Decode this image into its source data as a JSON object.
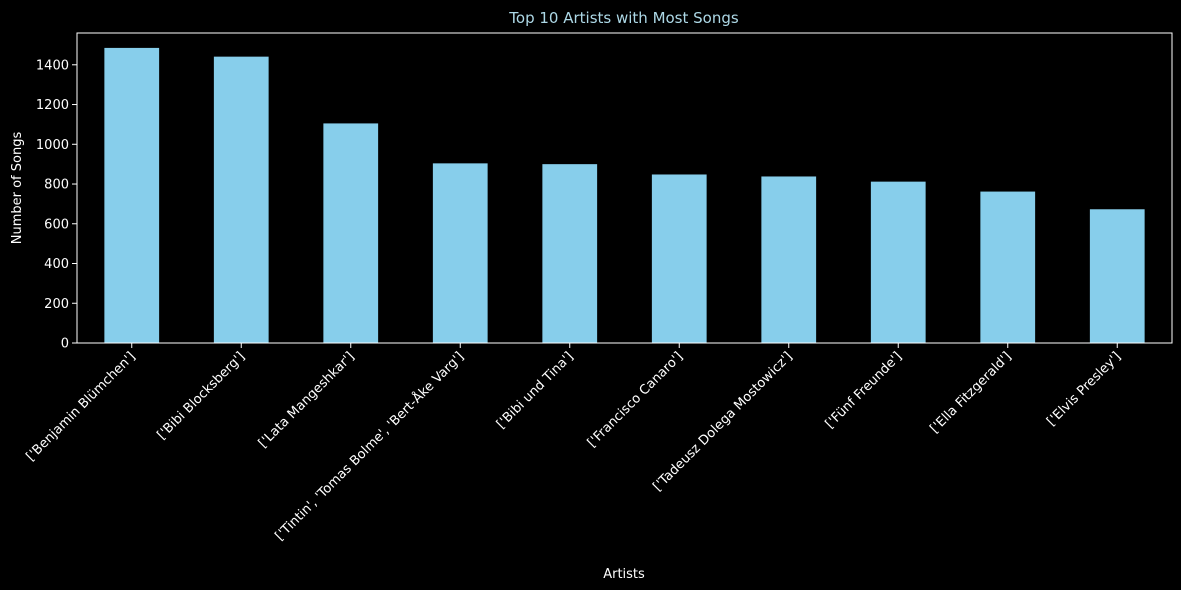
{
  "chart_data": {
    "type": "bar",
    "title": "Top 10 Artists with Most Songs",
    "xlabel": "Artists",
    "ylabel": "Number of Songs",
    "categories": [
      "['Benjamin Blümchen']",
      "['Bibi Blocksberg']",
      "['Lata Mangeshkar']",
      "['Tintin', 'Tomas Bolme', 'Bert-Åke Varg']",
      "['Bibi und Tina']",
      "['Francisco Canaro']",
      "['Tadeusz Dolega Mostowicz']",
      "['Fünf Freunde']",
      "['Ella Fitzgerald']",
      "['Elvis Presley']"
    ],
    "values": [
      1485,
      1441,
      1105,
      904,
      900,
      848,
      838,
      812,
      762,
      673
    ],
    "ylim": [
      0,
      1560
    ],
    "yticks": [
      0,
      200,
      400,
      600,
      800,
      1000,
      1200,
      1400
    ],
    "grid": false,
    "legend": "none",
    "colors": {
      "background": "#000000",
      "bar": "#87ceeb",
      "title": "#add8e6",
      "text": "#ffffff",
      "axis": "#ffffff"
    }
  }
}
